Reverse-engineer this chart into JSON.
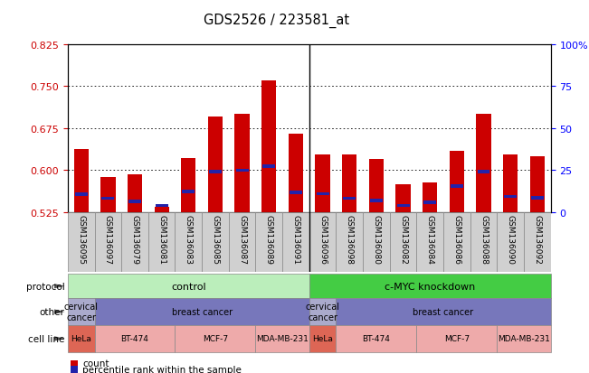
{
  "title": "GDS2526 / 223581_at",
  "samples": [
    "GSM136095",
    "GSM136097",
    "GSM136079",
    "GSM136081",
    "GSM136083",
    "GSM136085",
    "GSM136087",
    "GSM136089",
    "GSM136091",
    "GSM136096",
    "GSM136098",
    "GSM136080",
    "GSM136082",
    "GSM136084",
    "GSM136086",
    "GSM136088",
    "GSM136090",
    "GSM136092"
  ],
  "bar_values": [
    0.638,
    0.587,
    0.593,
    0.535,
    0.622,
    0.695,
    0.7,
    0.76,
    0.665,
    0.628,
    0.628,
    0.62,
    0.575,
    0.578,
    0.635,
    0.7,
    0.628,
    0.625
  ],
  "percentile_values": [
    0.557,
    0.55,
    0.544,
    0.537,
    0.562,
    0.598,
    0.6,
    0.607,
    0.56,
    0.558,
    0.55,
    0.546,
    0.537,
    0.543,
    0.572,
    0.598,
    0.553,
    0.551
  ],
  "ylim_left": [
    0.525,
    0.825
  ],
  "ylim_right": [
    0,
    100
  ],
  "yticks_left": [
    0.525,
    0.6,
    0.675,
    0.75,
    0.825
  ],
  "yticks_right": [
    0,
    25,
    50,
    75,
    100
  ],
  "grid_lines": [
    0.6,
    0.675,
    0.75
  ],
  "bar_color": "#cc0000",
  "percentile_color": "#2222aa",
  "plot_bg_color": "#ffffff",
  "label_bg_color": "#d0d0d0",
  "protocol_groups": [
    {
      "label": "control",
      "start": 0,
      "end": 9,
      "color": "#bbeebb"
    },
    {
      "label": "c-MYC knockdown",
      "start": 9,
      "end": 18,
      "color": "#44cc44"
    }
  ],
  "other_groups": [
    {
      "label": "cervical\ncancer",
      "start": 0,
      "end": 1,
      "color": "#aaaacc"
    },
    {
      "label": "breast cancer",
      "start": 1,
      "end": 9,
      "color": "#7777bb"
    },
    {
      "label": "cervical\ncancer",
      "start": 9,
      "end": 10,
      "color": "#aaaacc"
    },
    {
      "label": "breast cancer",
      "start": 10,
      "end": 18,
      "color": "#7777bb"
    }
  ],
  "cell_line_groups": [
    {
      "label": "HeLa",
      "start": 0,
      "end": 1,
      "color": "#dd6655"
    },
    {
      "label": "BT-474",
      "start": 1,
      "end": 4,
      "color": "#eeaaaa"
    },
    {
      "label": "MCF-7",
      "start": 4,
      "end": 7,
      "color": "#eeaaaa"
    },
    {
      "label": "MDA-MB-231",
      "start": 7,
      "end": 9,
      "color": "#eeaaaa"
    },
    {
      "label": "HeLa",
      "start": 9,
      "end": 10,
      "color": "#dd6655"
    },
    {
      "label": "BT-474",
      "start": 10,
      "end": 13,
      "color": "#eeaaaa"
    },
    {
      "label": "MCF-7",
      "start": 13,
      "end": 16,
      "color": "#eeaaaa"
    },
    {
      "label": "MDA-MB-231",
      "start": 16,
      "end": 18,
      "color": "#eeaaaa"
    }
  ]
}
